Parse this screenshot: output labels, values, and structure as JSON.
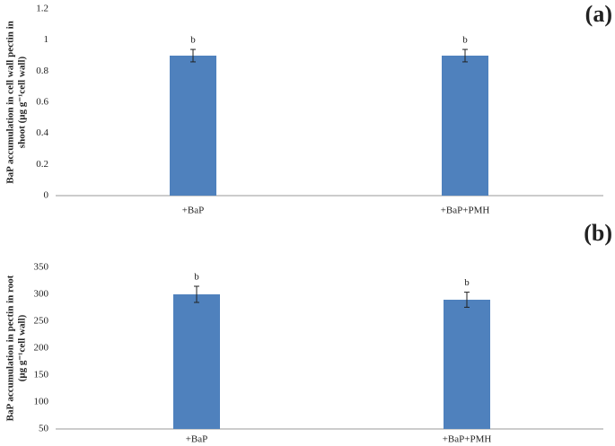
{
  "chart_data": [
    {
      "type": "bar",
      "panel_label": "(a)",
      "y_label": [
        "BaP accumulation in cell wall pectin in",
        "shoot (μg g⁻¹cell wall)"
      ],
      "categories": [
        "+BaP",
        "+BaP+PMH"
      ],
      "values": [
        0.9,
        0.9
      ],
      "errors": [
        0.04,
        0.04
      ],
      "annotations": [
        "b",
        "b"
      ],
      "color": "#4f81bd",
      "ylim": [
        0,
        1.2
      ],
      "yticks": [
        0,
        0.2,
        0.4,
        0.6,
        0.8,
        1,
        1.2
      ],
      "grid": false
    },
    {
      "type": "bar",
      "panel_label": "(b)",
      "y_label": [
        "BaP accumulation in pectin in root",
        "(μg g⁻¹cell wall)"
      ],
      "categories": [
        "+BaP",
        "+BaP+PMH"
      ],
      "values": [
        300,
        290
      ],
      "errors": [
        15,
        14
      ],
      "annotations": [
        "b",
        "b"
      ],
      "color": "#4f81bd",
      "ylim": [
        50,
        350
      ],
      "yticks": [
        50,
        100,
        150,
        200,
        250,
        300,
        350
      ],
      "grid": false
    }
  ]
}
